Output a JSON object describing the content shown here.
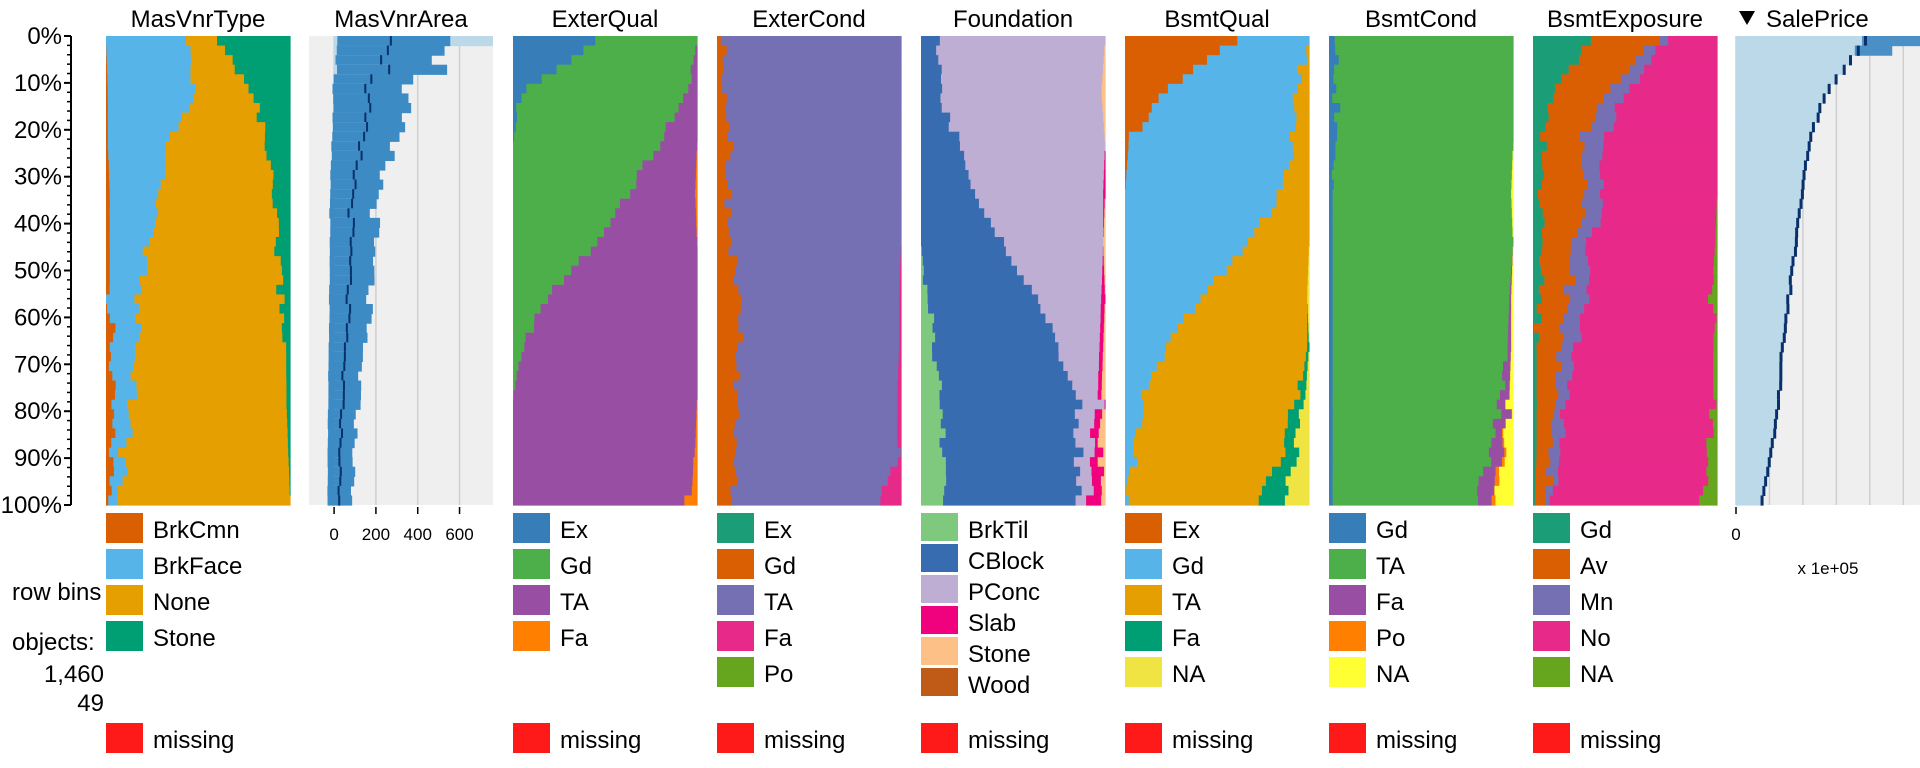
{
  "chart_data": {
    "type": "tableplot",
    "y_axis_ticks": [
      "0%",
      "10%",
      "20%",
      "30%",
      "40%",
      "50%",
      "60%",
      "70%",
      "80%",
      "90%",
      "100%"
    ],
    "info": {
      "row_bins_label": "row bins",
      "objects_label": "objects:",
      "objects_value": "1,460",
      "bins_value": "49"
    },
    "missing_label": "missing",
    "columns": [
      {
        "name": "MasVnrType",
        "kind": "categorical",
        "categories": [
          "BrkCmn",
          "BrkFace",
          "None",
          "Stone"
        ],
        "colors": [
          "#d95f02",
          "#56b4e9",
          "#e69f00",
          "#009e73"
        ],
        "props_by_decile": [
          [
            0.0,
            0.42,
            0.18,
            0.38
          ],
          [
            0.01,
            0.48,
            0.3,
            0.2
          ],
          [
            0.01,
            0.32,
            0.52,
            0.13
          ],
          [
            0.02,
            0.27,
            0.6,
            0.1
          ],
          [
            0.02,
            0.2,
            0.7,
            0.07
          ],
          [
            0.02,
            0.16,
            0.76,
            0.05
          ],
          [
            0.03,
            0.14,
            0.8,
            0.02
          ],
          [
            0.03,
            0.1,
            0.84,
            0.02
          ],
          [
            0.03,
            0.07,
            0.88,
            0.01
          ],
          [
            0.03,
            0.05,
            0.91,
            0.0
          ]
        ]
      },
      {
        "name": "MasVnrArea",
        "kind": "numeric",
        "axis_ticks": [
          "0",
          "200",
          "400",
          "600"
        ],
        "xlim": [
          -120,
          760
        ],
        "mean_by_decile": [
          330,
          160,
          120,
          90,
          75,
          70,
          50,
          40,
          30,
          25
        ]
      },
      {
        "name": "ExterQual",
        "kind": "categorical",
        "categories": [
          "Ex",
          "Gd",
          "TA",
          "Fa"
        ],
        "colors": [
          "#377eb8",
          "#4daf4a",
          "#984ea3",
          "#ff7f00"
        ],
        "props_by_decile": [
          [
            0.45,
            0.55,
            0.0,
            0.0
          ],
          [
            0.05,
            0.9,
            0.05,
            0.0
          ],
          [
            0.0,
            0.8,
            0.2,
            0.0
          ],
          [
            0.0,
            0.62,
            0.37,
            0.01
          ],
          [
            0.0,
            0.45,
            0.55,
            0.0
          ],
          [
            0.0,
            0.18,
            0.82,
            0.0
          ],
          [
            0.0,
            0.05,
            0.95,
            0.0
          ],
          [
            0.0,
            0.0,
            1.0,
            0.0
          ],
          [
            0.0,
            0.0,
            0.99,
            0.01
          ],
          [
            0.0,
            0.0,
            0.95,
            0.05
          ]
        ]
      },
      {
        "name": "ExterCond",
        "kind": "categorical",
        "categories": [
          "Ex",
          "Gd",
          "TA",
          "Fa",
          "Po"
        ],
        "colors": [
          "#1b9e77",
          "#d95f02",
          "#7570b3",
          "#e7298a",
          "#66a61e"
        ],
        "props_by_decile": [
          [
            0.0,
            0.03,
            0.97,
            0.0,
            0.0
          ],
          [
            0.0,
            0.05,
            0.95,
            0.0,
            0.0
          ],
          [
            0.0,
            0.08,
            0.92,
            0.0,
            0.0
          ],
          [
            0.0,
            0.06,
            0.94,
            0.0,
            0.0
          ],
          [
            0.0,
            0.08,
            0.92,
            0.0,
            0.0
          ],
          [
            0.0,
            0.12,
            0.87,
            0.01,
            0.0
          ],
          [
            0.0,
            0.12,
            0.87,
            0.01,
            0.0
          ],
          [
            0.0,
            0.1,
            0.88,
            0.02,
            0.0
          ],
          [
            0.0,
            0.09,
            0.89,
            0.02,
            0.0
          ],
          [
            0.0,
            0.1,
            0.79,
            0.11,
            0.0
          ]
        ]
      },
      {
        "name": "Foundation",
        "kind": "categorical",
        "categories": [
          "BrkTil",
          "CBlock",
          "PConc",
          "Slab",
          "Stone",
          "Wood"
        ],
        "colors": [
          "#7fc97f",
          "#386cb0",
          "#beaed4",
          "#f0027f",
          "#fdc086",
          "#bf5b17"
        ],
        "props_by_decile": [
          [
            0.0,
            0.08,
            0.92,
            0.0,
            0.0,
            0.0
          ],
          [
            0.0,
            0.1,
            0.88,
            0.0,
            0.02,
            0.0
          ],
          [
            0.0,
            0.2,
            0.8,
            0.0,
            0.0,
            0.0
          ],
          [
            0.0,
            0.3,
            0.69,
            0.01,
            0.0,
            0.0
          ],
          [
            0.0,
            0.45,
            0.54,
            0.0,
            0.01,
            0.0
          ],
          [
            0.03,
            0.58,
            0.37,
            0.02,
            0.0,
            0.0
          ],
          [
            0.08,
            0.67,
            0.22,
            0.02,
            0.01,
            0.0
          ],
          [
            0.1,
            0.73,
            0.13,
            0.02,
            0.02,
            0.0
          ],
          [
            0.12,
            0.74,
            0.08,
            0.03,
            0.03,
            0.0
          ],
          [
            0.14,
            0.71,
            0.06,
            0.07,
            0.02,
            0.0
          ]
        ]
      },
      {
        "name": "BsmtQual",
        "kind": "categorical",
        "categories": [
          "Ex",
          "Gd",
          "TA",
          "Fa",
          "NA"
        ],
        "colors": [
          "#d95f02",
          "#56b4e9",
          "#e69f00",
          "#009e73",
          "#f0e442"
        ],
        "props_by_decile": [
          [
            0.6,
            0.4,
            0.0,
            0.0,
            0.0
          ],
          [
            0.2,
            0.72,
            0.08,
            0.0,
            0.0
          ],
          [
            0.02,
            0.9,
            0.08,
            0.0,
            0.0
          ],
          [
            0.0,
            0.84,
            0.16,
            0.0,
            0.0
          ],
          [
            0.0,
            0.67,
            0.33,
            0.0,
            0.0
          ],
          [
            0.0,
            0.42,
            0.57,
            0.0,
            0.01
          ],
          [
            0.0,
            0.22,
            0.77,
            0.01,
            0.0
          ],
          [
            0.0,
            0.1,
            0.85,
            0.03,
            0.02
          ],
          [
            0.0,
            0.05,
            0.82,
            0.06,
            0.07
          ],
          [
            0.0,
            0.02,
            0.7,
            0.14,
            0.14
          ]
        ]
      },
      {
        "name": "BsmtCond",
        "kind": "categorical",
        "categories": [
          "Gd",
          "TA",
          "Fa",
          "Po",
          "NA"
        ],
        "colors": [
          "#377eb8",
          "#4daf4a",
          "#984ea3",
          "#ff7f00",
          "#ffff33"
        ],
        "props_by_decile": [
          [
            0.03,
            0.97,
            0.0,
            0.0,
            0.0
          ],
          [
            0.04,
            0.96,
            0.0,
            0.0,
            0.0
          ],
          [
            0.03,
            0.97,
            0.0,
            0.0,
            0.0
          ],
          [
            0.02,
            0.97,
            0.0,
            0.0,
            0.01
          ],
          [
            0.02,
            0.98,
            0.0,
            0.0,
            0.0
          ],
          [
            0.02,
            0.96,
            0.01,
            0.0,
            0.01
          ],
          [
            0.02,
            0.95,
            0.02,
            0.0,
            0.01
          ],
          [
            0.02,
            0.92,
            0.04,
            0.0,
            0.02
          ],
          [
            0.02,
            0.86,
            0.06,
            0.01,
            0.05
          ],
          [
            0.02,
            0.78,
            0.08,
            0.03,
            0.09
          ]
        ]
      },
      {
        "name": "BsmtExposure",
        "kind": "categorical",
        "categories": [
          "Gd",
          "Av",
          "Mn",
          "No",
          "NA"
        ],
        "colors": [
          "#1b9e77",
          "#d95f02",
          "#7570b3",
          "#e7298a",
          "#66a61e"
        ],
        "props_by_decile": [
          [
            0.32,
            0.35,
            0.05,
            0.28,
            0.0
          ],
          [
            0.1,
            0.3,
            0.1,
            0.5,
            0.0
          ],
          [
            0.05,
            0.2,
            0.12,
            0.63,
            0.0
          ],
          [
            0.05,
            0.25,
            0.1,
            0.6,
            0.0
          ],
          [
            0.04,
            0.18,
            0.08,
            0.69,
            0.01
          ],
          [
            0.04,
            0.15,
            0.1,
            0.68,
            0.03
          ],
          [
            0.02,
            0.12,
            0.08,
            0.76,
            0.02
          ],
          [
            0.02,
            0.1,
            0.06,
            0.8,
            0.02
          ],
          [
            0.02,
            0.08,
            0.05,
            0.81,
            0.04
          ],
          [
            0.01,
            0.07,
            0.04,
            0.8,
            0.08
          ]
        ]
      },
      {
        "name": "SalePrice",
        "kind": "numeric",
        "sorted": "desc",
        "axis_ticks": [
          "0"
        ],
        "axis_note": "x 1e+05",
        "xlim": [
          0,
          5.5
        ],
        "mean_by_decile": [
          3.9,
          2.7,
          2.2,
          2.0,
          1.8,
          1.6,
          1.4,
          1.3,
          1.1,
          0.8
        ]
      }
    ]
  }
}
